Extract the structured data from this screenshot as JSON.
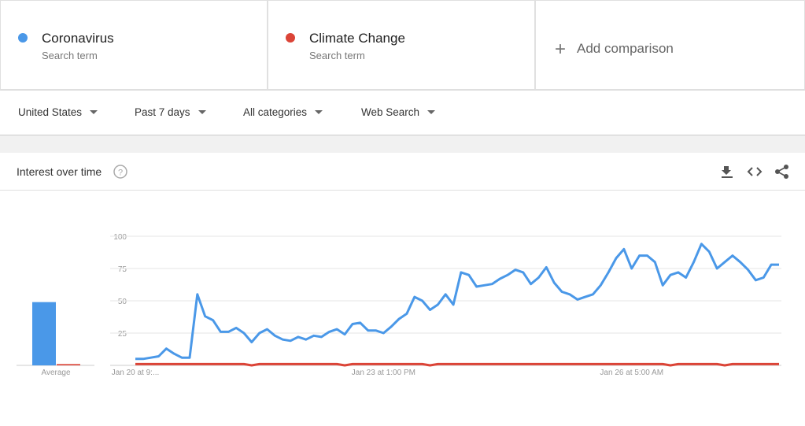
{
  "header": {
    "terms": [
      {
        "subtitle": "Search term"
      },
      {
        "subtitle": "Search term"
      }
    ],
    "add_comparison": "Add comparison"
  },
  "filters": [
    "United States",
    "Past 7 days",
    "All categories",
    "Web Search"
  ],
  "chart_data": {
    "type": "line",
    "title": "Interest over time",
    "average_label": "Average",
    "categories": [
      "Jan 20 at 9:...",
      null,
      null,
      null,
      null,
      null,
      null,
      null,
      null,
      null,
      null,
      null,
      null,
      null,
      null,
      null,
      null,
      null,
      null,
      null,
      null,
      null,
      null,
      null,
      null,
      null,
      null,
      null,
      null,
      null,
      null,
      null,
      "Jan 23 at 1:00 PM",
      null,
      null,
      null,
      null,
      null,
      null,
      null,
      null,
      null,
      null,
      null,
      null,
      null,
      null,
      null,
      null,
      null,
      null,
      null,
      null,
      null,
      null,
      null,
      null,
      null,
      null,
      null,
      null,
      null,
      null,
      null,
      "Jan 26 at 5:00 AM",
      null,
      null,
      null,
      null,
      null,
      null,
      null,
      null,
      null,
      null,
      null,
      null,
      null,
      null,
      null,
      null,
      null,
      null,
      null
    ],
    "series": [
      {
        "name": "Coronavirus",
        "color": "#4a98e8",
        "average": 49,
        "values": [
          5,
          5,
          6,
          7,
          13,
          9,
          6,
          6,
          55,
          38,
          35,
          26,
          26,
          29,
          25,
          18,
          25,
          28,
          23,
          20,
          19,
          22,
          20,
          23,
          22,
          26,
          28,
          24,
          32,
          33,
          27,
          27,
          25,
          30,
          36,
          40,
          53,
          50,
          43,
          47,
          55,
          47,
          72,
          70,
          61,
          62,
          63,
          67,
          70,
          74,
          72,
          63,
          68,
          76,
          64,
          57,
          55,
          51,
          53,
          55,
          62,
          72,
          83,
          90,
          75,
          85,
          85,
          80,
          62,
          70,
          72,
          68,
          80,
          94,
          88,
          75,
          80,
          85,
          80,
          74,
          66,
          68,
          78,
          78
        ]
      },
      {
        "name": "Climate Change",
        "color": "#db4437",
        "average": 1,
        "values": [
          1,
          1,
          1,
          1,
          1,
          1,
          1,
          1,
          1,
          1,
          1,
          1,
          1,
          1,
          1,
          0,
          1,
          1,
          1,
          1,
          1,
          1,
          1,
          1,
          1,
          1,
          1,
          0,
          1,
          1,
          1,
          1,
          1,
          1,
          1,
          1,
          1,
          1,
          0,
          1,
          1,
          1,
          1,
          1,
          1,
          1,
          1,
          1,
          1,
          1,
          1,
          1,
          1,
          1,
          1,
          1,
          1,
          1,
          1,
          1,
          1,
          1,
          1,
          1,
          1,
          1,
          1,
          1,
          1,
          0,
          1,
          1,
          1,
          1,
          1,
          1,
          0,
          1,
          1,
          1,
          1,
          1,
          1,
          1
        ]
      }
    ],
    "ylim": [
      0,
      100
    ],
    "yticks": [
      25,
      50,
      75,
      100
    ],
    "grid": true
  }
}
